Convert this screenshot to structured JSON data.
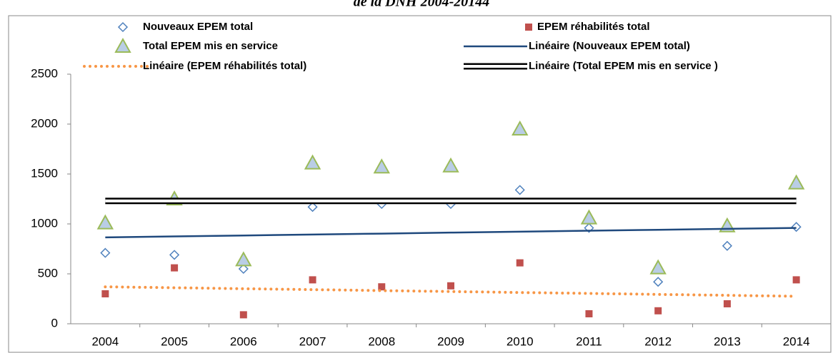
{
  "chart_data": {
    "type": "line",
    "title": "de la DNH 2004-20144",
    "categories": [
      "2004",
      "2005",
      "2006",
      "2007",
      "2008",
      "2009",
      "2010",
      "2011",
      "2012",
      "2013",
      "2014"
    ],
    "ylim": [
      0,
      2500
    ],
    "yticks": [
      0,
      500,
      1000,
      1500,
      2000,
      2500
    ],
    "grid": false,
    "series": [
      {
        "name": "Nouveaux EPEM total",
        "color": "#4f81bd",
        "marker": "diamond",
        "values": [
          710,
          690,
          550,
          1170,
          1200,
          1200,
          1340,
          960,
          420,
          780,
          970
        ]
      },
      {
        "name": "EPEM réhabilités total",
        "color": "#c0504d",
        "marker": "square",
        "values": [
          300,
          560,
          90,
          440,
          370,
          380,
          610,
          100,
          130,
          200,
          440
        ]
      },
      {
        "name": "Total EPEM mis en service",
        "color": "#9bbb59",
        "marker": "triangle",
        "values": [
          1010,
          1250,
          640,
          1610,
          1570,
          1580,
          1950,
          1060,
          560,
          980,
          1410
        ]
      },
      {
        "name": "Linéaire (Nouveaux EPEM total)",
        "color": "#1f497d",
        "line_style": "solid",
        "values": [
          865,
          875,
          884,
          894,
          903,
          913,
          922,
          932,
          941,
          951,
          960
        ]
      },
      {
        "name": "Linéaire (EPEM réhabilités total)",
        "color": "#f79646",
        "line_style": "dotted",
        "values": [
          370,
          361,
          351,
          342,
          332,
          323,
          313,
          304,
          294,
          285,
          275
        ]
      },
      {
        "name": "Linéaire (Total EPEM mis en service )",
        "color": "#000000",
        "line_style": "double",
        "values": [
          1230,
          1230,
          1230,
          1230,
          1230,
          1230,
          1230,
          1230,
          1230,
          1230,
          1230
        ]
      }
    ]
  }
}
